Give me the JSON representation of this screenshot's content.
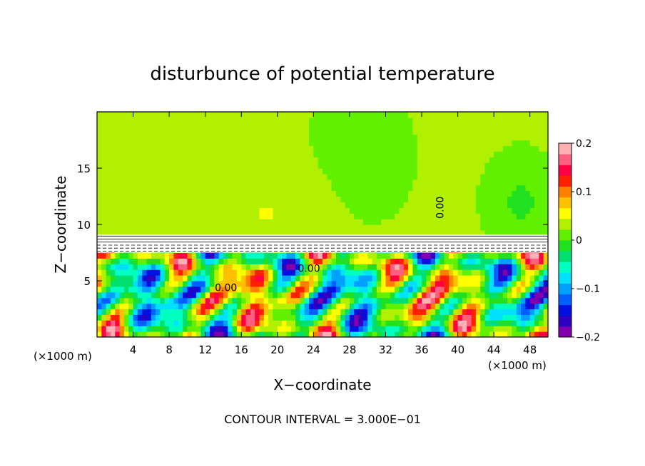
{
  "chart_data": {
    "type": "heatmap",
    "title": "disturbunce of potential temperature",
    "xlabel": "X−coordinate",
    "ylabel": "Z−coordinate",
    "x_unit_note_left": "(×1000 m)",
    "x_unit_note_right": "(×1000 m)",
    "xlim": [
      0,
      50
    ],
    "ylim": [
      0,
      20
    ],
    "x_ticks": [
      4,
      8,
      12,
      16,
      20,
      24,
      28,
      32,
      36,
      40,
      44,
      48
    ],
    "y_ticks": [
      5,
      10,
      15
    ],
    "colorbar": {
      "range": [
        -0.2,
        0.2
      ],
      "tick_values": [
        0.2,
        0.1,
        0,
        -0.1,
        -0.2
      ],
      "tick_labels": [
        "0.2",
        "0.1",
        "0",
        "−0.1",
        "−0.2"
      ],
      "colors": [
        "#8000b0",
        "#3000c0",
        "#0010e0",
        "#0060ff",
        "#00a0ff",
        "#00e0ff",
        "#00ffc0",
        "#00e070",
        "#20e020",
        "#60f000",
        "#b0f000",
        "#ffff00",
        "#ffc000",
        "#ff8000",
        "#ff2000",
        "#ff0040",
        "#ff6080",
        "#ffb0b0"
      ]
    },
    "contour_labels": [
      {
        "text": "0.00",
        "x": 14.3,
        "z": 4.4
      },
      {
        "text": "0.00",
        "x": 23.5,
        "z": 6.1
      },
      {
        "text": "0.00",
        "x": 38.0,
        "z": 11.5
      }
    ],
    "inversion_layer_z": 8.9,
    "contour_interval_text": "CONTOUR INTERVAL = 3.000E−01"
  }
}
